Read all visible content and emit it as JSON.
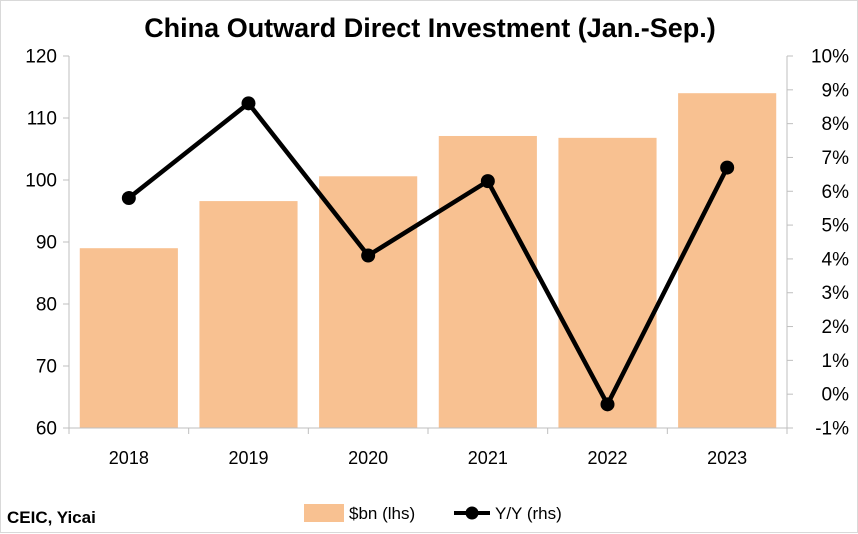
{
  "chart_data": {
    "type": "bar",
    "title": "China Outward Direct Investment (Jan.-Sep.)",
    "categories": [
      "2018",
      "2019",
      "2020",
      "2021",
      "2022",
      "2023"
    ],
    "series": [
      {
        "name": "$bn (lhs)",
        "kind": "bar",
        "axis": "left",
        "color": "#f8c191",
        "values": [
          89.0,
          96.6,
          100.6,
          107.1,
          106.8,
          114.0
        ]
      },
      {
        "name": "Y/Y (rhs)",
        "kind": "line",
        "axis": "right",
        "color": "#000000",
        "values": [
          5.8,
          8.6,
          4.1,
          6.3,
          -0.3,
          6.7
        ]
      }
    ],
    "ylim_left": [
      60,
      120
    ],
    "yticks_left": [
      "60",
      "70",
      "80",
      "90",
      "100",
      "110",
      "120"
    ],
    "ylim_right": [
      -1,
      10
    ],
    "yticks_right": [
      "-1%",
      "0%",
      "1%",
      "2%",
      "3%",
      "4%",
      "5%",
      "6%",
      "7%",
      "8%",
      "9%",
      "10%"
    ],
    "legend_position": "bottom",
    "grid": false
  },
  "source": "CEIC, Yicai"
}
